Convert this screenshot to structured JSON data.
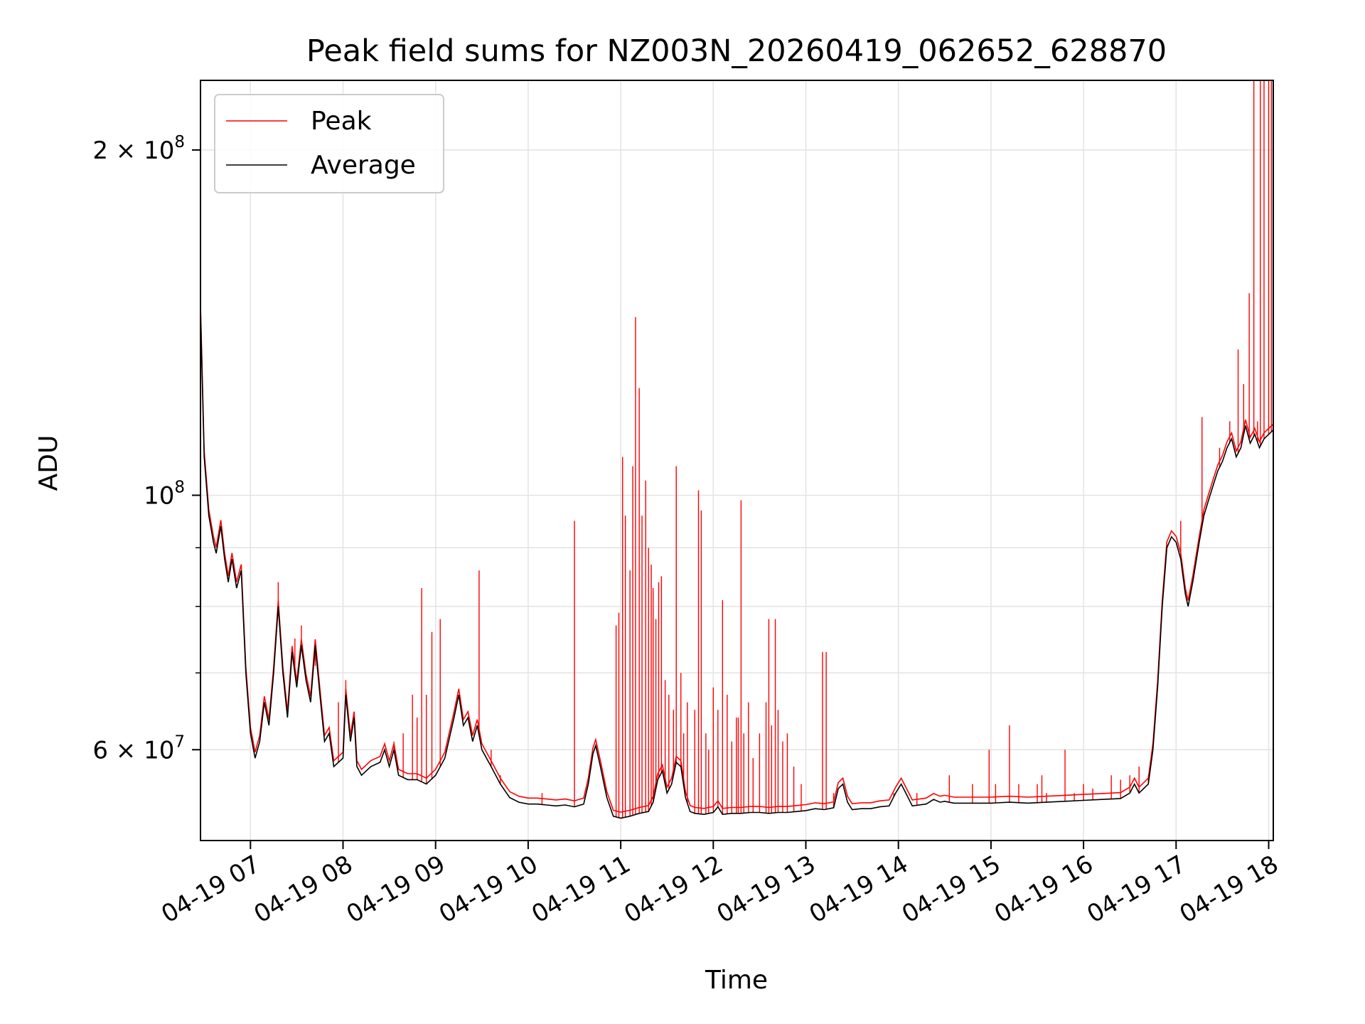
{
  "chart_data": {
    "type": "line",
    "title": "Peak field sums for NZ003N_20260419_062652_628870",
    "xlabel": "Time",
    "ylabel": "ADU",
    "yscale": "log",
    "ylim": [
      50000000,
      230000000
    ],
    "xlim_hours": [
      6.46,
      18.05
    ],
    "grid": true,
    "legend_position": "upper-left",
    "x_ticks": [
      {
        "hour": 7,
        "label": "04-19 07"
      },
      {
        "hour": 8,
        "label": "04-19 08"
      },
      {
        "hour": 9,
        "label": "04-19 09"
      },
      {
        "hour": 10,
        "label": "04-19 10"
      },
      {
        "hour": 11,
        "label": "04-19 11"
      },
      {
        "hour": 12,
        "label": "04-19 12"
      },
      {
        "hour": 13,
        "label": "04-19 13"
      },
      {
        "hour": 14,
        "label": "04-19 14"
      },
      {
        "hour": 15,
        "label": "04-19 15"
      },
      {
        "hour": 16,
        "label": "04-19 16"
      },
      {
        "hour": 17,
        "label": "04-19 17"
      },
      {
        "hour": 18,
        "label": "04-19 18"
      }
    ],
    "y_ticks": [
      {
        "value": 60000000,
        "mantissa": "6",
        "exp": "7"
      },
      {
        "value": 100000000,
        "mantissa": "",
        "exp": "8"
      },
      {
        "value": 200000000,
        "mantissa": "2",
        "exp": "8"
      }
    ],
    "y_minor_ticks": [
      70000000,
      80000000,
      90000000
    ],
    "series": [
      {
        "name": "Average",
        "color": "#000000",
        "points": [
          [
            6.46,
            145000000
          ],
          [
            6.5,
            108000000
          ],
          [
            6.55,
            96000000
          ],
          [
            6.6,
            91000000
          ],
          [
            6.63,
            89000000
          ],
          [
            6.68,
            94000000
          ],
          [
            6.72,
            88000000
          ],
          [
            6.76,
            84000000
          ],
          [
            6.8,
            88000000
          ],
          [
            6.85,
            83000000
          ],
          [
            6.9,
            86000000
          ],
          [
            6.95,
            70000000
          ],
          [
            7.0,
            62000000
          ],
          [
            7.05,
            59000000
          ],
          [
            7.1,
            61000000
          ],
          [
            7.15,
            66000000
          ],
          [
            7.2,
            63000000
          ],
          [
            7.25,
            70000000
          ],
          [
            7.3,
            80000000
          ],
          [
            7.35,
            70000000
          ],
          [
            7.4,
            64000000
          ],
          [
            7.45,
            73000000
          ],
          [
            7.5,
            68000000
          ],
          [
            7.55,
            74000000
          ],
          [
            7.6,
            69000000
          ],
          [
            7.65,
            66000000
          ],
          [
            7.7,
            74000000
          ],
          [
            7.75,
            67000000
          ],
          [
            7.8,
            61000000
          ],
          [
            7.85,
            62000000
          ],
          [
            7.9,
            58000000
          ],
          [
            8.0,
            59000000
          ],
          [
            8.03,
            67000000
          ],
          [
            8.08,
            61000000
          ],
          [
            8.12,
            64000000
          ],
          [
            8.15,
            58000000
          ],
          [
            8.2,
            57000000
          ],
          [
            8.3,
            58000000
          ],
          [
            8.4,
            58500000
          ],
          [
            8.45,
            60000000
          ],
          [
            8.5,
            58000000
          ],
          [
            8.55,
            60000000
          ],
          [
            8.6,
            57000000
          ],
          [
            8.7,
            56500000
          ],
          [
            8.8,
            56500000
          ],
          [
            8.9,
            56000000
          ],
          [
            9.0,
            57000000
          ],
          [
            9.1,
            59000000
          ],
          [
            9.2,
            64000000
          ],
          [
            9.25,
            67000000
          ],
          [
            9.3,
            63000000
          ],
          [
            9.35,
            64000000
          ],
          [
            9.4,
            61000000
          ],
          [
            9.45,
            63000000
          ],
          [
            9.5,
            60000000
          ],
          [
            9.6,
            58000000
          ],
          [
            9.7,
            56000000
          ],
          [
            9.8,
            54500000
          ],
          [
            9.9,
            54000000
          ],
          [
            10.0,
            53800000
          ],
          [
            10.1,
            53800000
          ],
          [
            10.2,
            53700000
          ],
          [
            10.3,
            53600000
          ],
          [
            10.4,
            53700000
          ],
          [
            10.5,
            53500000
          ],
          [
            10.6,
            53800000
          ],
          [
            10.65,
            56000000
          ],
          [
            10.7,
            59500000
          ],
          [
            10.73,
            60500000
          ],
          [
            10.78,
            58000000
          ],
          [
            10.85,
            54500000
          ],
          [
            10.92,
            52500000
          ],
          [
            11.0,
            52300000
          ],
          [
            11.1,
            52500000
          ],
          [
            11.2,
            52800000
          ],
          [
            11.3,
            53000000
          ],
          [
            11.35,
            54000000
          ],
          [
            11.4,
            56500000
          ],
          [
            11.45,
            57500000
          ],
          [
            11.5,
            55000000
          ],
          [
            11.55,
            56000000
          ],
          [
            11.6,
            58500000
          ],
          [
            11.65,
            58000000
          ],
          [
            11.7,
            54500000
          ],
          [
            11.75,
            53000000
          ],
          [
            11.8,
            52800000
          ],
          [
            11.9,
            52700000
          ],
          [
            12.0,
            52900000
          ],
          [
            12.05,
            53500000
          ],
          [
            12.1,
            52700000
          ],
          [
            12.2,
            52800000
          ],
          [
            12.3,
            52800000
          ],
          [
            12.4,
            52900000
          ],
          [
            12.5,
            52900000
          ],
          [
            12.6,
            52800000
          ],
          [
            12.7,
            52900000
          ],
          [
            12.8,
            52900000
          ],
          [
            12.9,
            53000000
          ],
          [
            13.0,
            53100000
          ],
          [
            13.1,
            53300000
          ],
          [
            13.2,
            53200000
          ],
          [
            13.3,
            53400000
          ],
          [
            13.35,
            55500000
          ],
          [
            13.4,
            56000000
          ],
          [
            13.45,
            54000000
          ],
          [
            13.5,
            53200000
          ],
          [
            13.6,
            53300000
          ],
          [
            13.7,
            53300000
          ],
          [
            13.8,
            53500000
          ],
          [
            13.9,
            53600000
          ],
          [
            13.97,
            55000000
          ],
          [
            14.03,
            56000000
          ],
          [
            14.08,
            55000000
          ],
          [
            14.15,
            53600000
          ],
          [
            14.3,
            53800000
          ],
          [
            14.38,
            54300000
          ],
          [
            14.45,
            54000000
          ],
          [
            14.5,
            54100000
          ],
          [
            14.6,
            53900000
          ],
          [
            14.8,
            53900000
          ],
          [
            15.0,
            53900000
          ],
          [
            15.2,
            54000000
          ],
          [
            15.4,
            53900000
          ],
          [
            15.6,
            54000000
          ],
          [
            15.8,
            54100000
          ],
          [
            16.0,
            54200000
          ],
          [
            16.2,
            54300000
          ],
          [
            16.4,
            54400000
          ],
          [
            16.5,
            55000000
          ],
          [
            16.55,
            56000000
          ],
          [
            16.6,
            55000000
          ],
          [
            16.7,
            56000000
          ],
          [
            16.75,
            60000000
          ],
          [
            16.8,
            68000000
          ],
          [
            16.85,
            80000000
          ],
          [
            16.9,
            90000000
          ],
          [
            16.95,
            92000000
          ],
          [
            17.0,
            91000000
          ],
          [
            17.05,
            88000000
          ],
          [
            17.1,
            82000000
          ],
          [
            17.13,
            80000000
          ],
          [
            17.18,
            84000000
          ],
          [
            17.25,
            91000000
          ],
          [
            17.3,
            96000000
          ],
          [
            17.35,
            99000000
          ],
          [
            17.4,
            102000000
          ],
          [
            17.45,
            105000000
          ],
          [
            17.5,
            107000000
          ],
          [
            17.55,
            110000000
          ],
          [
            17.6,
            112000000
          ],
          [
            17.65,
            108000000
          ],
          [
            17.7,
            110000000
          ],
          [
            17.75,
            115000000
          ],
          [
            17.8,
            111000000
          ],
          [
            17.85,
            113000000
          ],
          [
            17.9,
            110000000
          ],
          [
            17.95,
            112000000
          ],
          [
            18.0,
            113000000
          ],
          [
            18.05,
            114000000
          ]
        ]
      },
      {
        "name": "Peak",
        "color": "#ff0000",
        "spikes": [
          [
            7.3,
            84000000
          ],
          [
            7.48,
            75000000
          ],
          [
            7.55,
            77000000
          ],
          [
            7.7,
            71000000
          ],
          [
            7.95,
            66000000
          ],
          [
            8.03,
            69000000
          ],
          [
            8.45,
            60000000
          ],
          [
            8.55,
            61000000
          ],
          [
            8.65,
            62000000
          ],
          [
            8.75,
            67000000
          ],
          [
            8.8,
            64000000
          ],
          [
            8.85,
            83000000
          ],
          [
            8.9,
            67000000
          ],
          [
            8.96,
            76000000
          ],
          [
            9.05,
            78000000
          ],
          [
            9.47,
            86000000
          ],
          [
            9.6,
            60000000
          ],
          [
            9.7,
            57000000
          ],
          [
            10.15,
            55000000
          ],
          [
            10.5,
            95000000
          ],
          [
            10.95,
            77000000
          ],
          [
            10.98,
            79000000
          ],
          [
            11.02,
            108000000
          ],
          [
            11.05,
            96000000
          ],
          [
            11.1,
            86000000
          ],
          [
            11.13,
            106000000
          ],
          [
            11.16,
            143000000
          ],
          [
            11.2,
            124000000
          ],
          [
            11.23,
            96000000
          ],
          [
            11.27,
            103000000
          ],
          [
            11.3,
            90000000
          ],
          [
            11.33,
            87000000
          ],
          [
            11.35,
            83000000
          ],
          [
            11.38,
            78000000
          ],
          [
            11.41,
            84000000
          ],
          [
            11.44,
            85000000
          ],
          [
            11.48,
            69000000
          ],
          [
            11.52,
            67000000
          ],
          [
            11.57,
            65000000
          ],
          [
            11.6,
            106000000
          ],
          [
            11.65,
            70000000
          ],
          [
            11.68,
            62000000
          ],
          [
            11.72,
            66000000
          ],
          [
            11.8,
            65000000
          ],
          [
            11.84,
            101000000
          ],
          [
            11.87,
            97000000
          ],
          [
            11.92,
            62000000
          ],
          [
            11.95,
            60000000
          ],
          [
            12.0,
            68000000
          ],
          [
            12.05,
            65000000
          ],
          [
            12.1,
            81000000
          ],
          [
            12.15,
            67000000
          ],
          [
            12.2,
            61000000
          ],
          [
            12.25,
            64000000
          ],
          [
            12.27,
            64000000
          ],
          [
            12.3,
            99000000
          ],
          [
            12.33,
            62000000
          ],
          [
            12.38,
            66000000
          ],
          [
            12.43,
            59000000
          ],
          [
            12.5,
            62000000
          ],
          [
            12.57,
            66000000
          ],
          [
            12.6,
            78000000
          ],
          [
            12.63,
            63000000
          ],
          [
            12.67,
            78000000
          ],
          [
            12.7,
            65000000
          ],
          [
            12.75,
            61000000
          ],
          [
            12.8,
            62000000
          ],
          [
            12.87,
            58000000
          ],
          [
            12.95,
            56000000
          ],
          [
            13.18,
            73000000
          ],
          [
            13.22,
            73000000
          ],
          [
            13.3,
            55000000
          ],
          [
            13.95,
            55000000
          ],
          [
            14.2,
            55000000
          ],
          [
            14.55,
            57000000
          ],
          [
            14.8,
            56000000
          ],
          [
            14.98,
            60000000
          ],
          [
            15.05,
            56000000
          ],
          [
            15.2,
            63000000
          ],
          [
            15.3,
            56000000
          ],
          [
            15.5,
            56000000
          ],
          [
            15.55,
            57000000
          ],
          [
            15.6,
            55000000
          ],
          [
            15.8,
            60000000
          ],
          [
            15.9,
            55000000
          ],
          [
            16.0,
            56000000
          ],
          [
            16.1,
            55500000
          ],
          [
            16.3,
            57000000
          ],
          [
            16.4,
            56500000
          ],
          [
            16.5,
            57000000
          ],
          [
            16.6,
            58000000
          ],
          [
            16.7,
            57000000
          ],
          [
            17.05,
            95000000
          ],
          [
            17.28,
            117000000
          ],
          [
            17.47,
            110000000
          ],
          [
            17.58,
            116000000
          ],
          [
            17.67,
            134000000
          ],
          [
            17.73,
            125000000
          ],
          [
            17.79,
            150000000
          ],
          [
            17.84,
            230000000
          ],
          [
            17.88,
            116000000
          ],
          [
            17.91,
            230000000
          ],
          [
            17.95,
            230000000
          ],
          [
            18.0,
            230000000
          ],
          [
            18.03,
            230000000
          ]
        ]
      }
    ]
  }
}
